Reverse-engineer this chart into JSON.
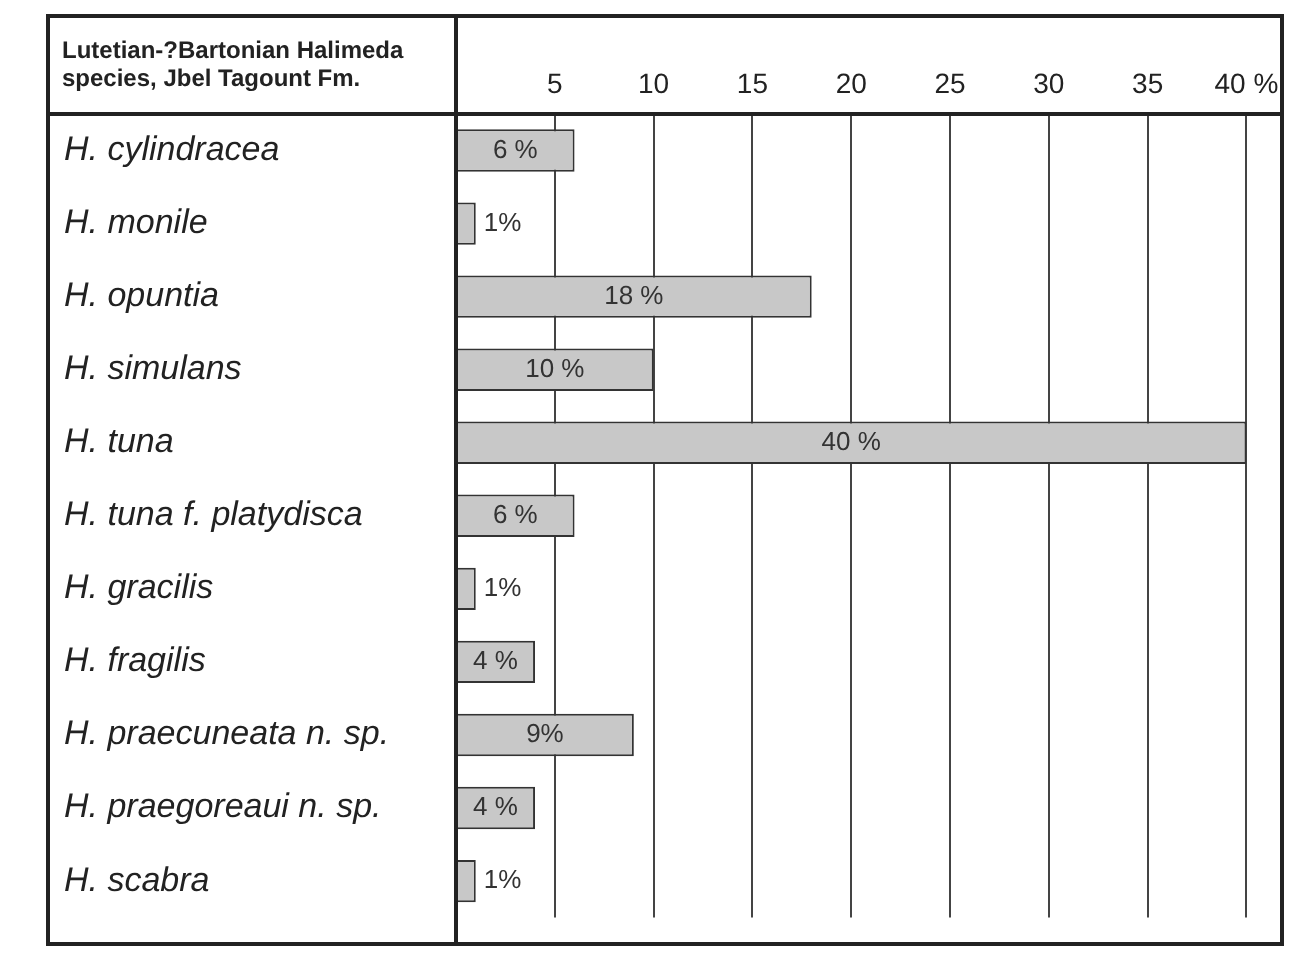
{
  "chart_data": {
    "type": "bar",
    "orientation": "horizontal",
    "title": "Lutetian-?Bartonian Halimeda species, Jbel Tagount Fm.",
    "categories": [
      "H. cylindracea",
      "H. monile",
      "H. opuntia",
      "H. simulans",
      "H. tuna",
      "H. tuna f. platydisca",
      "H. gracilis",
      "H. fragilis",
      "H. praecuneata n. sp.",
      "H. praegoreaui n. sp.",
      "H. scabra"
    ],
    "values": [
      6,
      1,
      18,
      10,
      40,
      6,
      1,
      4,
      9,
      4,
      1
    ],
    "value_labels": [
      "6 %",
      "1%",
      "18 %",
      "10 %",
      "40 %",
      "6 %",
      "1%",
      "4 %",
      "9%",
      "4 %",
      "1%"
    ],
    "color": "#c8c8c8",
    "xlim": [
      0,
      41.8
    ],
    "xticks": [
      5,
      10,
      15,
      20,
      25,
      30,
      35,
      {
        "value": 40,
        "label": "40 %"
      }
    ],
    "grid": "x",
    "legend": false
  }
}
